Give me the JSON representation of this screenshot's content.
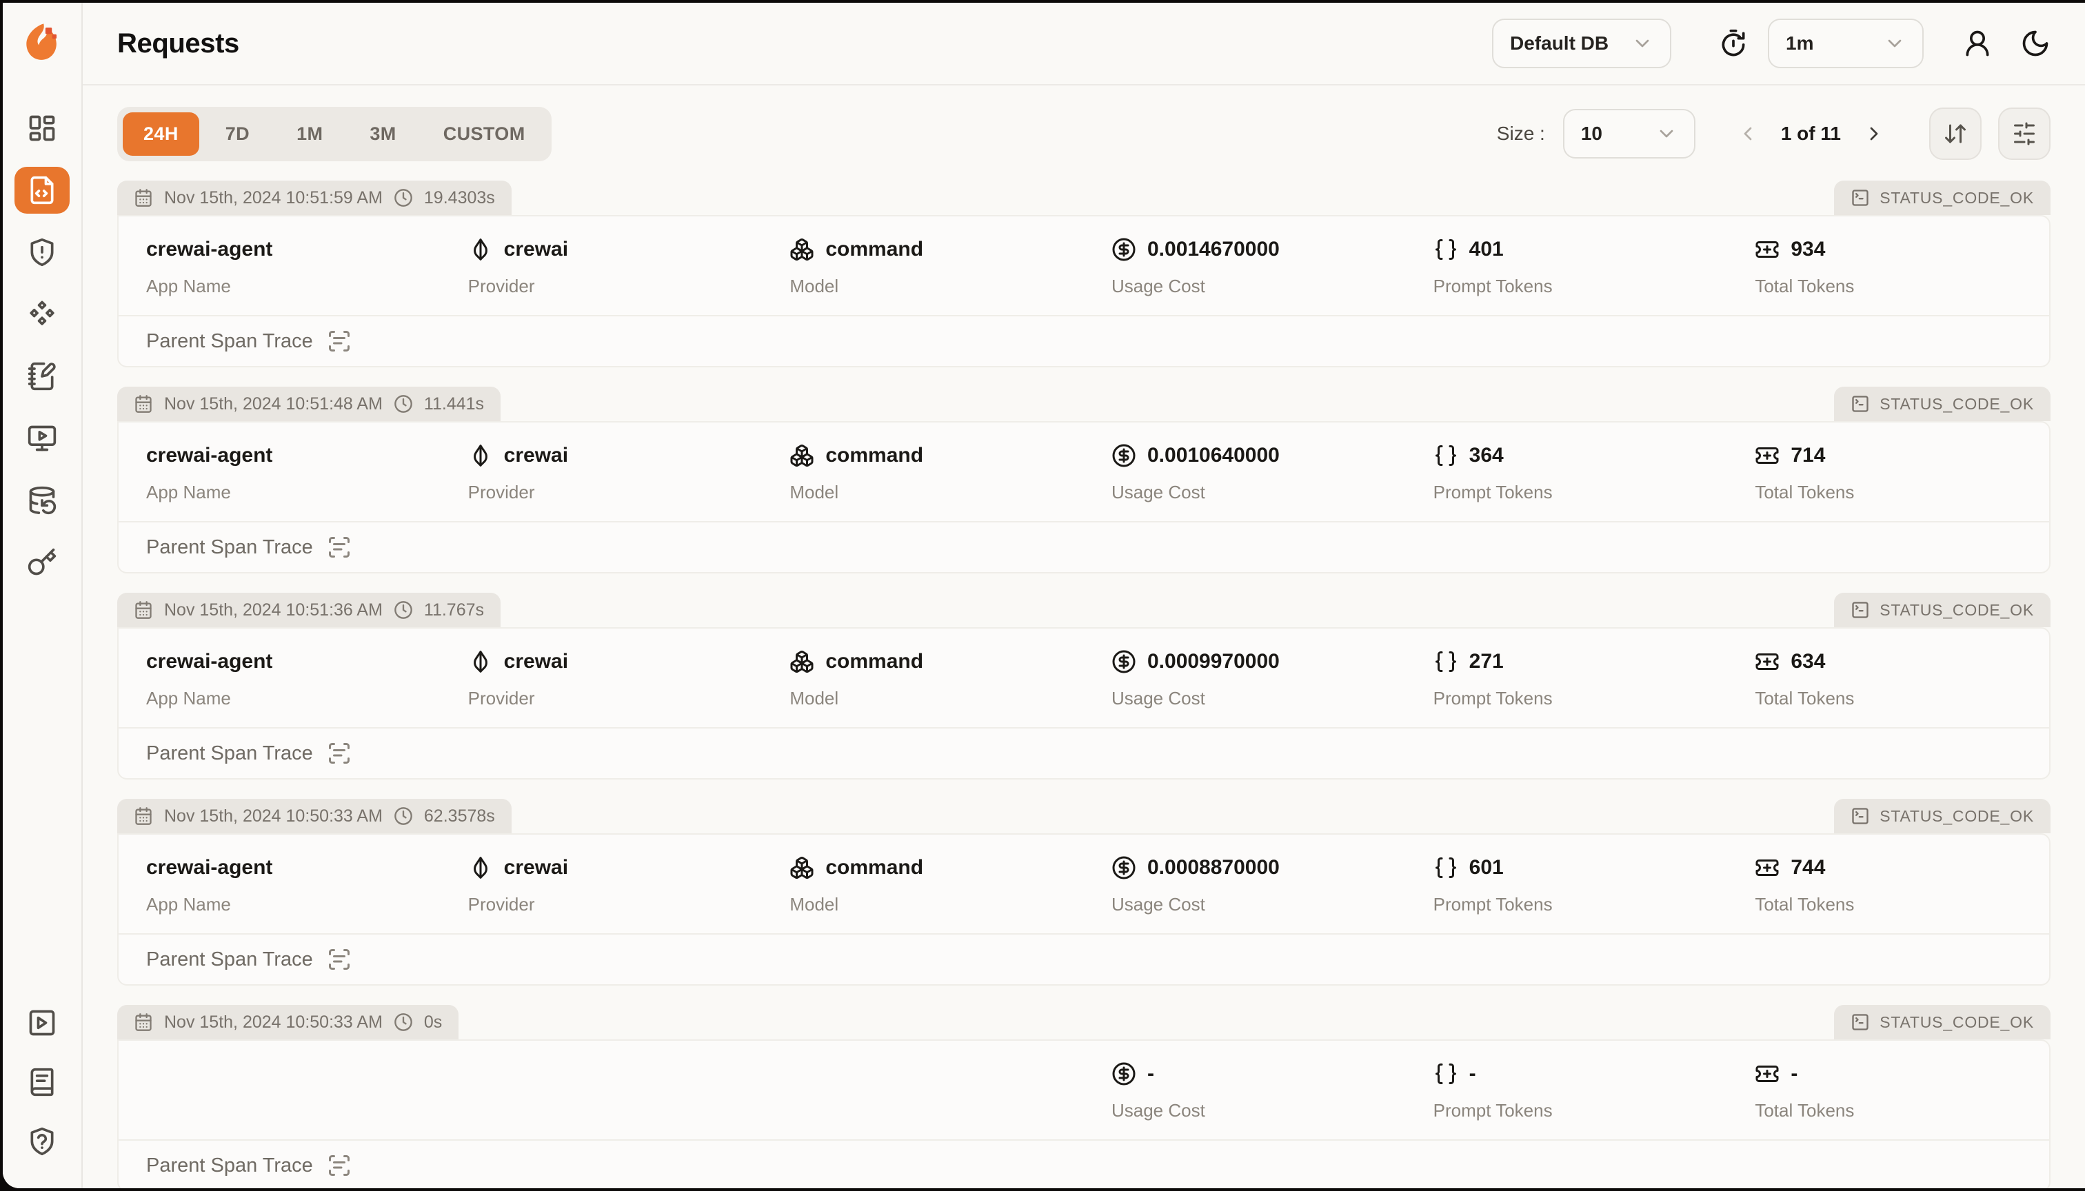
{
  "window": {
    "title": "Requests"
  },
  "colors": {
    "accent": "#E8762D",
    "chip_bg": "#E9E6E1",
    "page_bg": "#FAF9F6"
  },
  "sidebar": {
    "items": [
      {
        "icon": "dashboard-icon",
        "name": "dashboard",
        "active": false
      },
      {
        "icon": "file-code-icon",
        "name": "requests",
        "active": true
      },
      {
        "icon": "shield-alert-icon",
        "name": "exceptions",
        "active": false
      },
      {
        "icon": "diamonds-icon",
        "name": "vault",
        "active": false
      },
      {
        "icon": "notebook-pen-icon",
        "name": "openground",
        "active": false
      },
      {
        "icon": "monitor-play-icon",
        "name": "playground",
        "active": false
      },
      {
        "icon": "database-backup-icon",
        "name": "databases",
        "active": false
      },
      {
        "icon": "key-icon",
        "name": "api-keys",
        "active": false
      }
    ],
    "footer_items": [
      {
        "icon": "square-play-icon",
        "name": "getting-started"
      },
      {
        "icon": "book-icon",
        "name": "documentation"
      },
      {
        "icon": "shield-question-icon",
        "name": "support"
      }
    ]
  },
  "header": {
    "title": "Requests",
    "database_select": {
      "value": "Default DB"
    },
    "interval_select": {
      "value": "1m"
    }
  },
  "toolbar": {
    "time_ranges": [
      {
        "label": "24H",
        "active": true
      },
      {
        "label": "7D",
        "active": false
      },
      {
        "label": "1M",
        "active": false
      },
      {
        "label": "3M",
        "active": false
      },
      {
        "label": "CUSTOM",
        "active": false
      }
    ],
    "size_label": "Size :",
    "size_select": {
      "value": "10"
    },
    "pagination": {
      "info": "1 of 11"
    }
  },
  "labels": {
    "app_name": "App Name",
    "provider": "Provider",
    "model": "Model",
    "usage_cost": "Usage Cost",
    "prompt_tokens": "Prompt Tokens",
    "total_tokens": "Total Tokens",
    "parent_span": "Parent Span Trace"
  },
  "requests": [
    {
      "timestamp": "Nov 15th, 2024 10:51:59 AM",
      "duration": "19.4303s",
      "status": "STATUS_CODE_OK",
      "app_name": "crewai-agent",
      "provider": "crewai",
      "model": "command",
      "usage_cost": "0.0014670000",
      "prompt_tokens": "401",
      "total_tokens": "934"
    },
    {
      "timestamp": "Nov 15th, 2024 10:51:48 AM",
      "duration": "11.441s",
      "status": "STATUS_CODE_OK",
      "app_name": "crewai-agent",
      "provider": "crewai",
      "model": "command",
      "usage_cost": "0.0010640000",
      "prompt_tokens": "364",
      "total_tokens": "714"
    },
    {
      "timestamp": "Nov 15th, 2024 10:51:36 AM",
      "duration": "11.767s",
      "status": "STATUS_CODE_OK",
      "app_name": "crewai-agent",
      "provider": "crewai",
      "model": "command",
      "usage_cost": "0.0009970000",
      "prompt_tokens": "271",
      "total_tokens": "634"
    },
    {
      "timestamp": "Nov 15th, 2024 10:50:33 AM",
      "duration": "62.3578s",
      "status": "STATUS_CODE_OK",
      "app_name": "crewai-agent",
      "provider": "crewai",
      "model": "command",
      "usage_cost": "0.0008870000",
      "prompt_tokens": "601",
      "total_tokens": "744"
    },
    {
      "timestamp": "Nov 15th, 2024 10:50:33 AM",
      "duration": "0s",
      "status": "STATUS_CODE_OK",
      "app_name": null,
      "provider": null,
      "model": null,
      "usage_cost": "-",
      "prompt_tokens": "-",
      "total_tokens": "-"
    }
  ]
}
